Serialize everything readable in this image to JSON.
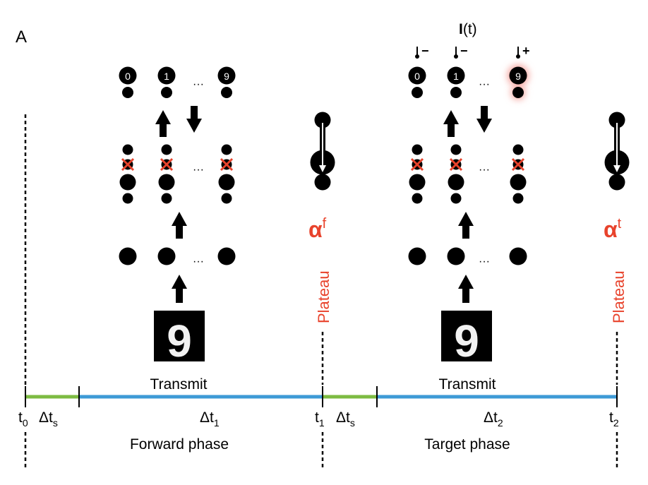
{
  "panel_label": "A",
  "output_labels": [
    "0",
    "1",
    "9"
  ],
  "ellipsis": "···",
  "current_label": {
    "bold": "I",
    "rest": "(t)"
  },
  "current_signs": [
    "−",
    "−",
    "+"
  ],
  "transmit": "Transmit",
  "plateau": "Plateau",
  "alpha": "α",
  "alpha_forward_sup": "f",
  "alpha_target_sup": "t",
  "phases": {
    "forward": "Forward phase",
    "target": "Target phase"
  },
  "time_marks": {
    "t0": {
      "base": "t",
      "sub": "0"
    },
    "t1": {
      "base": "t",
      "sub": "1"
    },
    "t2": {
      "base": "t",
      "sub": "2"
    }
  },
  "durations": {
    "dts": {
      "base": "Δt",
      "sub": "s"
    },
    "dt1": {
      "base": "Δt",
      "sub": "1"
    },
    "dt2": {
      "base": "Δt",
      "sub": "2"
    }
  },
  "input_digit": "9",
  "colors": {
    "ink": "#000000",
    "accent_red": "#e8432c",
    "green_segment": "#7dbb42",
    "blue_segment": "#3d9ad6",
    "glow": "#f4a09a"
  }
}
